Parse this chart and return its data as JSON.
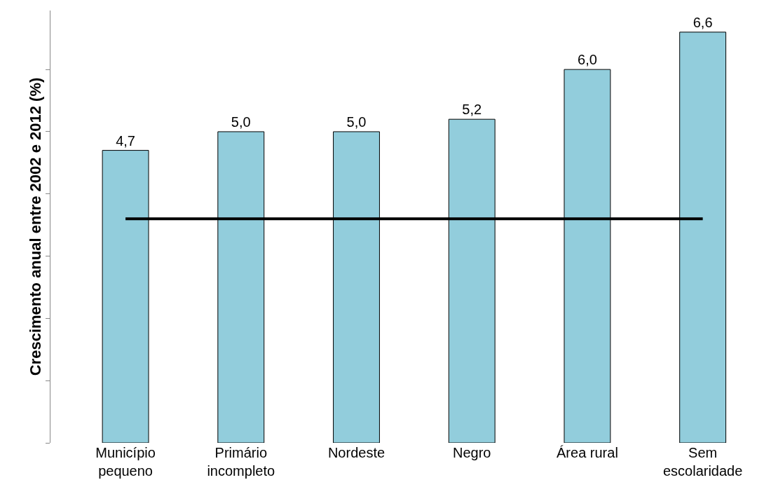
{
  "chart_data": {
    "type": "bar",
    "ylabel": "Crescimento anual entre 2002 e 2012 (%)",
    "categories": [
      "Município\npequeno",
      "Primário\nincompleto",
      "Nordeste",
      "Negro",
      "Área rural",
      "Sem\nescolaridade"
    ],
    "values": [
      4.7,
      5.0,
      5.0,
      5.2,
      6.0,
      6.6
    ],
    "color": "#92cddc",
    "value_labels": [
      "4,7",
      "5,0",
      "5,0",
      "5,2",
      "6,0",
      "6,6"
    ],
    "tick_labels": "x",
    "ref_lines": [
      {
        "axis": "y",
        "value": 3.6,
        "color": "#000000"
      }
    ]
  }
}
